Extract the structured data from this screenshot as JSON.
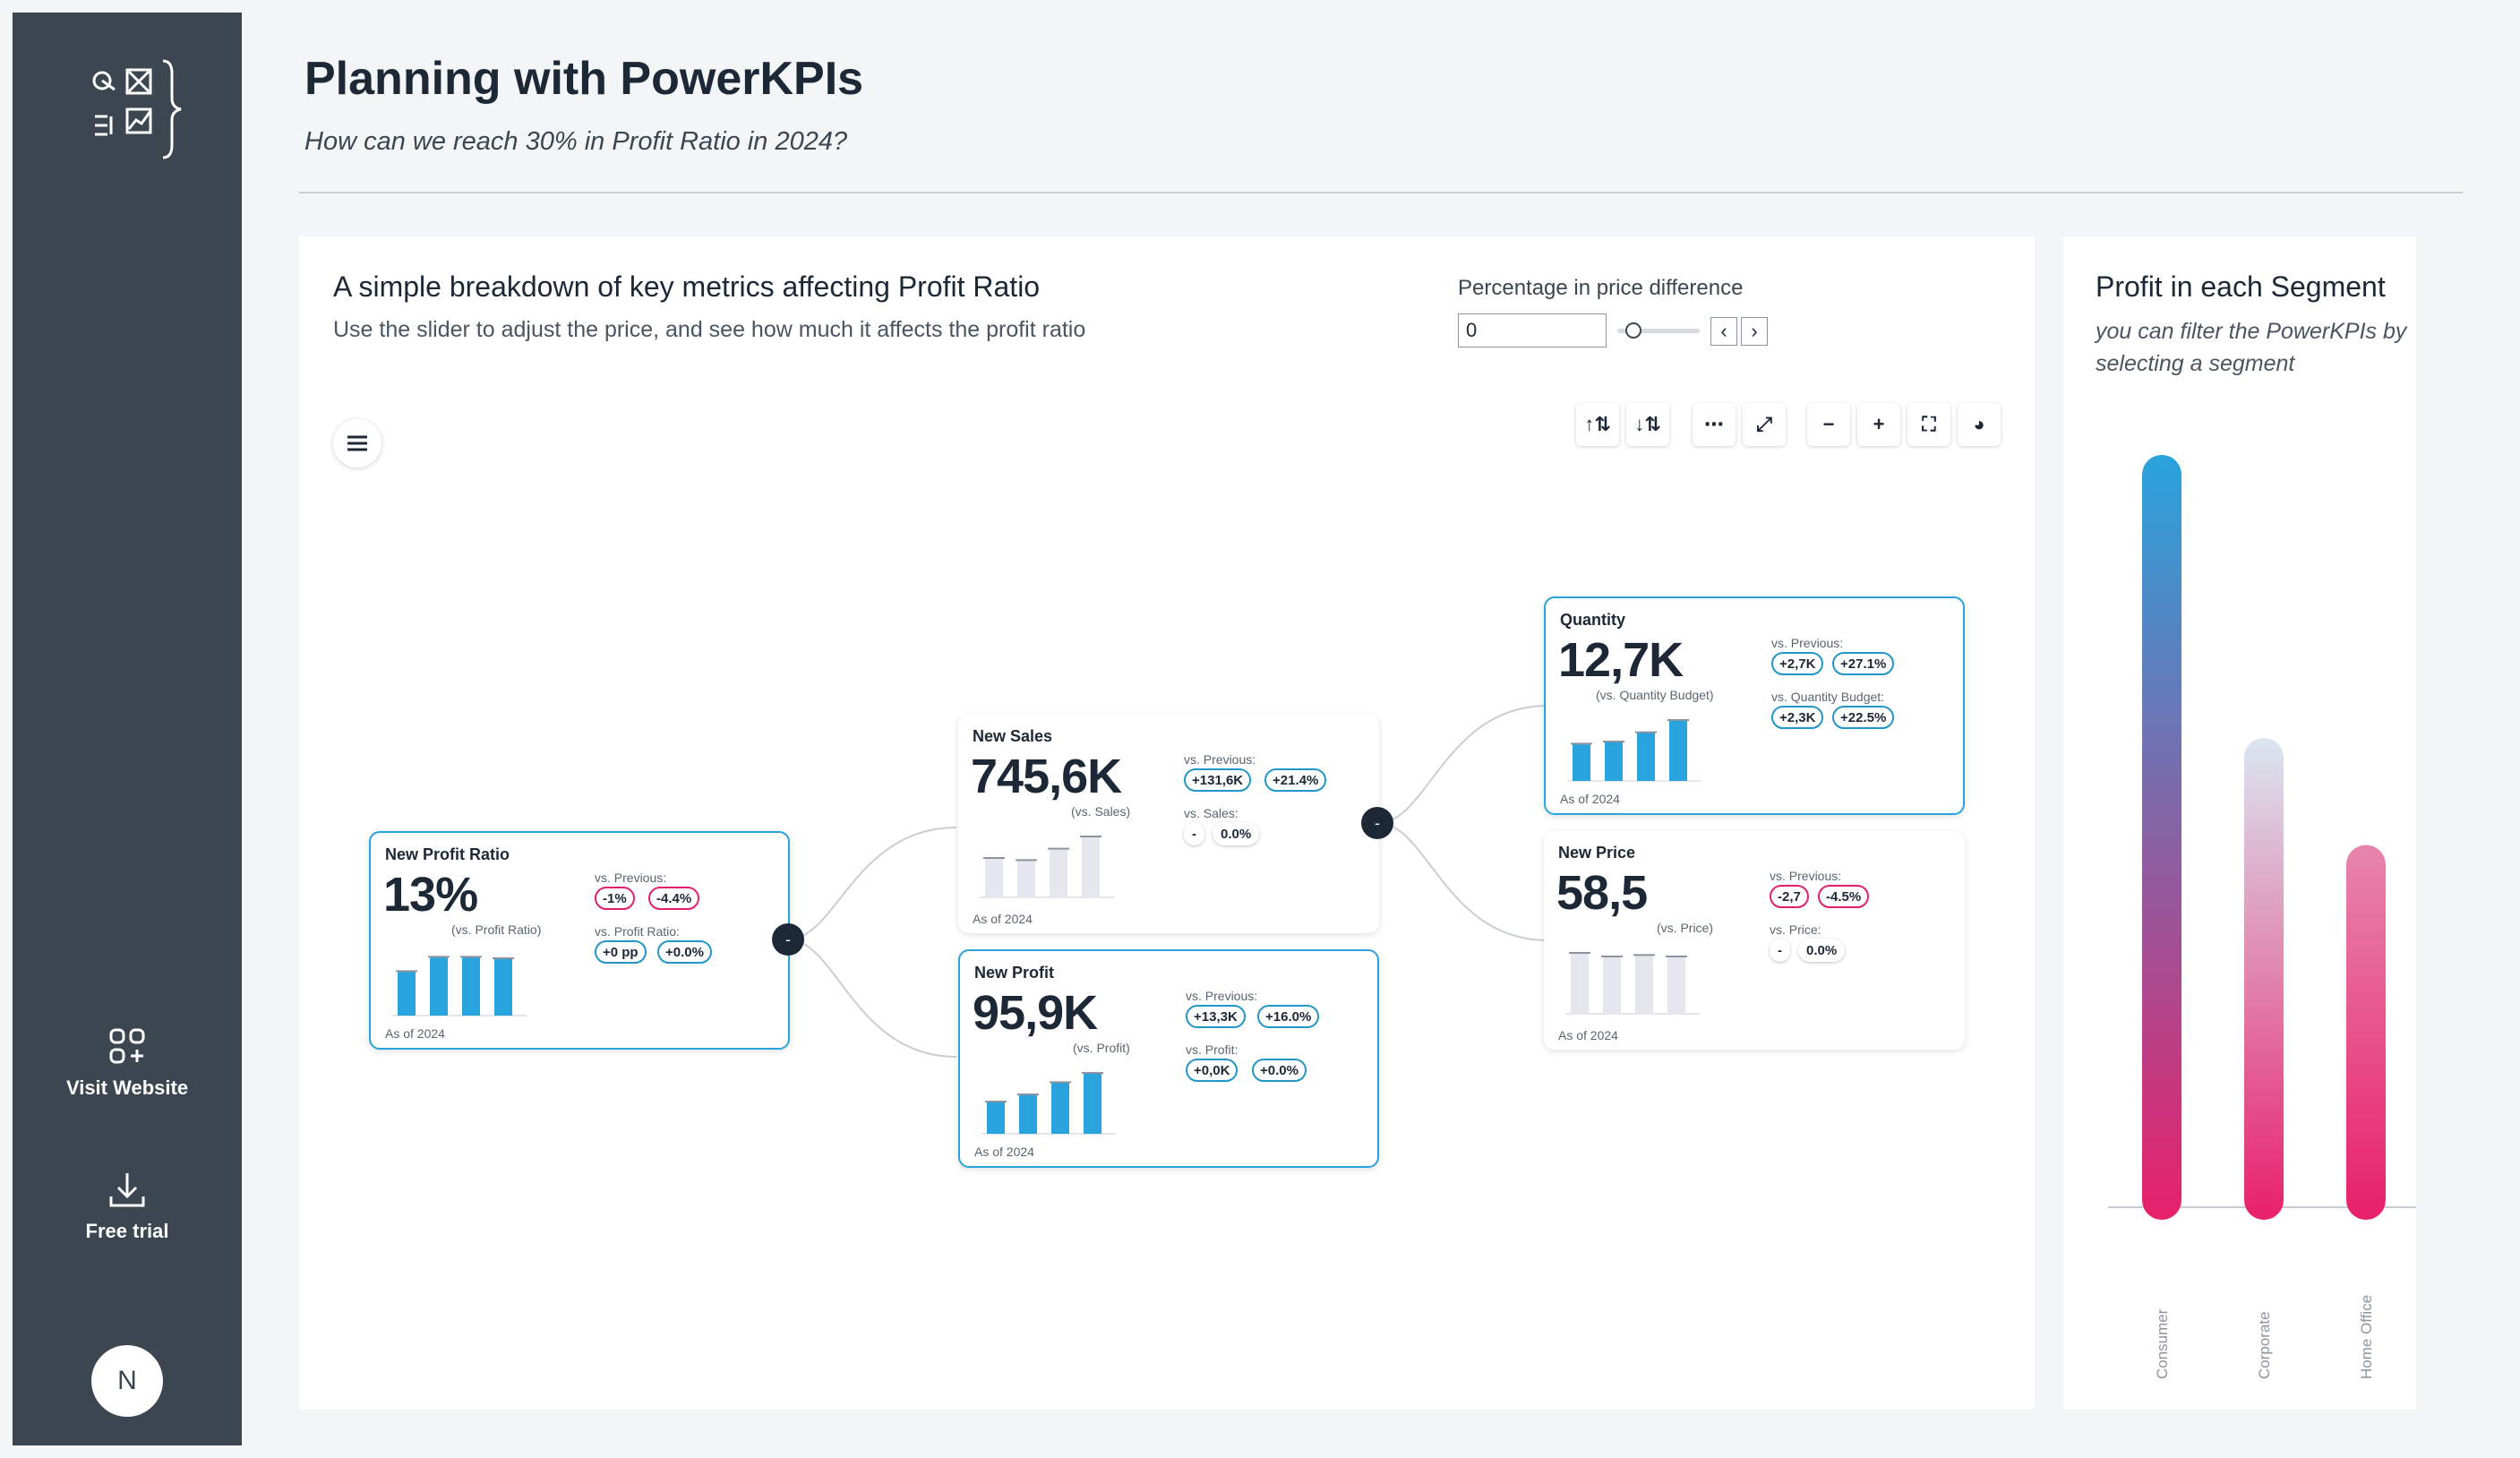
{
  "header": {
    "title": "Planning with PowerKPIs",
    "subtitle": "How can we reach 30% in Profit Ratio in 2024?"
  },
  "sidebar": {
    "logo_icon": "powerkpis-logo-icon",
    "links": [
      {
        "label": "Visit Website",
        "icon": "apps-add-icon"
      },
      {
        "label": "Free trial",
        "icon": "download-icon"
      }
    ],
    "avatar_initial": "N"
  },
  "main": {
    "title": "A simple breakdown of key metrics affecting Profit Ratio",
    "subtitle": "Use the slider to adjust the price, and see how much it affects the profit ratio",
    "parameter": {
      "label": "Percentage in price difference",
      "value": "0",
      "slider_fraction": 0.2,
      "prev_glyph": "‹",
      "next_glyph": "›"
    },
    "toolbar": [
      {
        "name": "sort-ascending-icon",
        "glyph": "↑⇅"
      },
      {
        "name": "sort-descending-icon",
        "glyph": "↓⇅"
      },
      {
        "name": "grid-dots-icon",
        "glyph": "⋯"
      },
      {
        "name": "expand-icon",
        "glyph": "⤢"
      },
      {
        "name": "zoom-out-icon",
        "glyph": "−"
      },
      {
        "name": "zoom-in-icon",
        "glyph": "+"
      },
      {
        "name": "fullscreen-icon",
        "glyph": "⛶"
      },
      {
        "name": "palette-icon",
        "glyph": "◕"
      }
    ],
    "menu_icon": "hamburger-menu-icon",
    "as_of": "As of 2024",
    "cards": {
      "profit_ratio": {
        "title": "New Profit Ratio",
        "value": "13%",
        "vs_label": "(vs. Profit Ratio)",
        "label1": "vs. Previous:",
        "pill1a": "-1%",
        "pill1b": "-4.4%",
        "label2": "vs. Profit Ratio:",
        "pill2a": "+0 pp",
        "pill2b": "+0.0%",
        "bars": [
          0.62,
          0.82,
          0.82,
          0.8
        ]
      },
      "sales": {
        "title": "New Sales",
        "value": "745,6K",
        "vs_label": "(vs. Sales)",
        "label1": "vs. Previous:",
        "pill1a": "+131,6K",
        "pill1b": "+21.4%",
        "label2": "vs. Sales:",
        "pill2a": "-",
        "pill2b": "0.0%",
        "bars": [
          0.55,
          0.52,
          0.68,
          0.85
        ]
      },
      "profit": {
        "title": "New Profit",
        "value": "95,9K",
        "vs_label": "(vs. Profit)",
        "label1": "vs. Previous:",
        "pill1a": "+13,3K",
        "pill1b": "+16.0%",
        "label2": "vs. Profit:",
        "pill2a": "+0,0K",
        "pill2b": "+0.0%",
        "bars": [
          0.45,
          0.55,
          0.72,
          0.85
        ]
      },
      "quantity": {
        "title": "Quantity",
        "value": "12,7K",
        "vs_label": "(vs. Quantity Budget)",
        "label1": "vs. Previous:",
        "pill1a": "+2,7K",
        "pill1b": "+27.1%",
        "label2": "vs. Quantity Budget:",
        "pill2a": "+2,3K",
        "pill2b": "+22.5%",
        "bars": [
          0.52,
          0.55,
          0.68,
          0.85
        ]
      },
      "price": {
        "title": "New Price",
        "value": "58,5",
        "vs_label": "(vs. Price)",
        "label1": "vs. Previous:",
        "pill1a": "-2,7",
        "pill1b": "-4.5%",
        "label2": "vs. Price:",
        "pill2a": "-",
        "pill2b": "0.0%",
        "bars": [
          0.85,
          0.8,
          0.82,
          0.8
        ]
      }
    },
    "node_toggle": "-"
  },
  "segment_panel": {
    "title": "Profit in each Segment",
    "subtitle": "you can filter the PowerKPIs by selecting a segment",
    "chart_data": {
      "type": "bar",
      "categories": [
        "Consumer",
        "Corporate",
        "Home Office"
      ],
      "values": [
        1.0,
        0.63,
        0.49
      ],
      "value_unit": "fraction of Consumer",
      "colors": {
        "top": [
          "#29a3dd",
          "#dbe6f0",
          "#e785ad"
        ],
        "bottom": "#e8206a"
      },
      "grid": false
    }
  }
}
